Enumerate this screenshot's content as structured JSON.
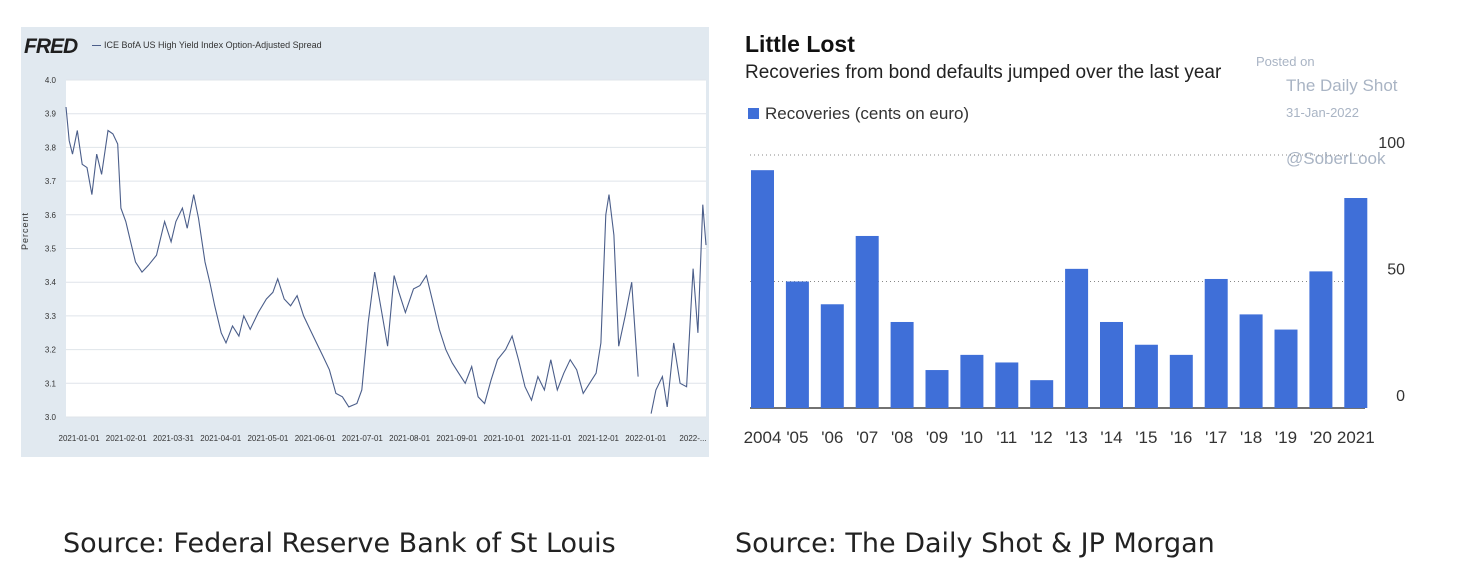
{
  "fred": {
    "logo": "FRED",
    "legend": "ICE BofA US High Yield Index Option-Adjusted Spread",
    "source": "Source: Federal Reserve Bank of St Louis"
  },
  "daily_shot": {
    "watermark": {
      "posted": "Posted on",
      "site": "The Daily Shot",
      "date": "31-Jan-2022",
      "handle": "@SoberLook"
    },
    "source": "Source: The Daily Shot & JP Morgan"
  },
  "colors": {
    "fred_line": "#4b5e8a",
    "fred_bg": "#e1e9f0",
    "bar": "#3f6fd8"
  },
  "chart_data": [
    {
      "type": "line",
      "title": "",
      "series_name": "ICE BofA US High Yield Index Option-Adjusted Spread",
      "ylabel": "Percent",
      "ylim": [
        3.0,
        4.0
      ],
      "yticks": [
        "3.0",
        "3.1",
        "3.2",
        "3.3",
        "3.4",
        "3.5",
        "3.6",
        "3.7",
        "3.8",
        "3.9",
        "4.0"
      ],
      "xticks": [
        "2021-01-01",
        "2021-02-01",
        "2021-03-31",
        "2021-04-01",
        "2021-05-01",
        "2021-06-01",
        "2021-07-01",
        "2021-08-01",
        "2021-09-01",
        "2021-10-01",
        "2021-11-01",
        "2021-12-01",
        "2022-01-01",
        "2022-..."
      ],
      "grid": true,
      "x": [
        "2021-01-01",
        "2021-01-03",
        "2021-01-05",
        "2021-01-08",
        "2021-01-11",
        "2021-01-14",
        "2021-01-17",
        "2021-01-20",
        "2021-01-23",
        "2021-01-27",
        "2021-01-30",
        "2021-02-02",
        "2021-02-04",
        "2021-02-07",
        "2021-02-10",
        "2021-02-13",
        "2021-02-17",
        "2021-02-21",
        "2021-02-26",
        "2021-03-03",
        "2021-03-07",
        "2021-03-10",
        "2021-03-14",
        "2021-03-17",
        "2021-03-21",
        "2021-03-24",
        "2021-03-28",
        "2021-03-31",
        "2021-04-03",
        "2021-04-07",
        "2021-04-10",
        "2021-04-14",
        "2021-04-18",
        "2021-04-21",
        "2021-04-25",
        "2021-04-30",
        "2021-05-05",
        "2021-05-09",
        "2021-05-12",
        "2021-05-16",
        "2021-05-20",
        "2021-05-24",
        "2021-05-28",
        "2021-06-01",
        "2021-06-05",
        "2021-06-09",
        "2021-06-13",
        "2021-06-17",
        "2021-06-21",
        "2021-06-25",
        "2021-06-30",
        "2021-07-03",
        "2021-07-07",
        "2021-07-11",
        "2021-07-15",
        "2021-07-19",
        "2021-07-23",
        "2021-07-26",
        "2021-07-30",
        "2021-08-04",
        "2021-08-08",
        "2021-08-12",
        "2021-08-16",
        "2021-08-20",
        "2021-08-24",
        "2021-08-28",
        "2021-09-01",
        "2021-09-05",
        "2021-09-09",
        "2021-09-13",
        "2021-09-17",
        "2021-09-21",
        "2021-09-25",
        "2021-09-30",
        "2021-10-04",
        "2021-10-08",
        "2021-10-12",
        "2021-10-16",
        "2021-10-20",
        "2021-10-24",
        "2021-10-28",
        "2021-11-01",
        "2021-11-05",
        "2021-11-09",
        "2021-11-13",
        "2021-11-17",
        "2021-11-21",
        "2021-11-25",
        "2021-11-28",
        "2021-12-01",
        "2021-12-03",
        "2021-12-06",
        "2021-12-09",
        "2021-12-13",
        "2021-12-17",
        "2021-12-21",
        "2021-12-25",
        "2021-12-29",
        "2022-01-01",
        "2022-01-05",
        "2022-01-08",
        "2022-01-12",
        "2022-01-16",
        "2022-01-20",
        "2022-01-24",
        "2022-01-27",
        "2022-01-30",
        "2022-02-01"
      ],
      "values": [
        3.92,
        3.82,
        3.78,
        3.85,
        3.75,
        3.74,
        3.66,
        3.78,
        3.72,
        3.85,
        3.84,
        3.81,
        3.62,
        3.58,
        3.52,
        3.46,
        3.43,
        3.45,
        3.48,
        3.58,
        3.52,
        3.58,
        3.62,
        3.56,
        3.66,
        3.59,
        3.46,
        3.4,
        3.33,
        3.25,
        3.22,
        3.27,
        3.24,
        3.3,
        3.26,
        3.31,
        3.35,
        3.37,
        3.41,
        3.35,
        3.33,
        3.36,
        3.3,
        3.26,
        3.22,
        3.18,
        3.14,
        3.07,
        3.06,
        3.03,
        3.04,
        3.08,
        3.28,
        3.43,
        3.32,
        3.21,
        3.42,
        3.37,
        3.31,
        3.38,
        3.39,
        3.42,
        3.34,
        3.26,
        3.2,
        3.16,
        3.13,
        3.1,
        3.15,
        3.06,
        3.04,
        3.11,
        3.17,
        3.2,
        3.24,
        3.17,
        3.09,
        3.05,
        3.12,
        3.08,
        3.17,
        3.08,
        3.13,
        3.17,
        3.14,
        3.07,
        3.1,
        3.13,
        3.22,
        3.6,
        3.66,
        3.54,
        3.21,
        3.3,
        3.4,
        3.12,
        null,
        3.01,
        3.08,
        3.12,
        3.03,
        3.22,
        3.1,
        3.09,
        3.44,
        3.25,
        3.63,
        3.51
      ]
    },
    {
      "type": "bar",
      "title": "Little Lost",
      "subtitle": "Recoveries from bond defaults jumped over the last year",
      "series": [
        {
          "name": "Recoveries (cents on euro)",
          "values": [
            94,
            50,
            41,
            68,
            34,
            15,
            21,
            18,
            11,
            55,
            34,
            25,
            21,
            51,
            37,
            31,
            54,
            83
          ]
        }
      ],
      "categories": [
        "2004",
        "'05",
        "'06",
        "'07",
        "'08",
        "'09",
        "'10",
        "'11",
        "'12",
        "'13",
        "'14",
        "'15",
        "'16",
        "'17",
        "'18",
        "'19",
        "'20",
        "2021"
      ],
      "yticks": [
        "0",
        "50",
        "100"
      ],
      "ylim": [
        0,
        100
      ],
      "legend": "top-left",
      "grid": true
    }
  ]
}
